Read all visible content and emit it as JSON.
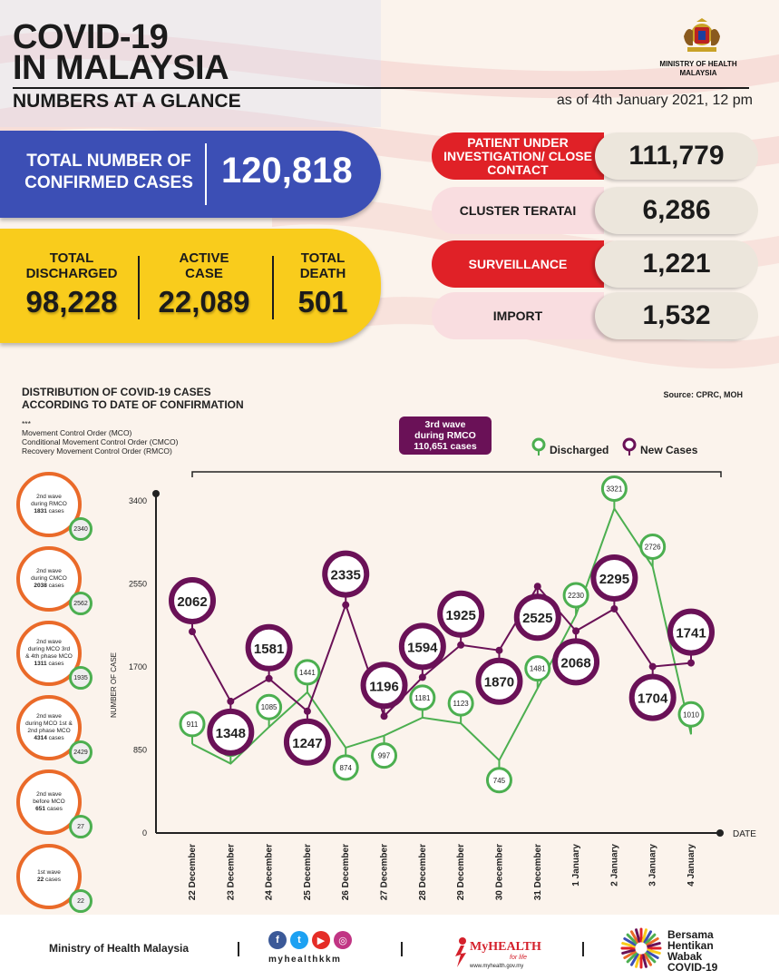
{
  "header": {
    "title_line1": "COVID-19",
    "title_line2": "IN MALAYSIA",
    "subtitle": "NUMBERS AT A GLANCE",
    "as_of": "as of 4th January 2021, 12 pm",
    "ministry_line1": "MINISTRY OF HEALTH",
    "ministry_line2": "MALAYSIA"
  },
  "confirmed": {
    "label_line1": "TOTAL NUMBER OF",
    "label_line2": "CONFIRMED CASES",
    "value": "120,818"
  },
  "summary": {
    "discharged_label_line1": "TOTAL",
    "discharged_label_line2": "DISCHARGED",
    "discharged_value": "98,228",
    "active_label_line1": "ACTIVE",
    "active_label_line2": "CASE",
    "active_value": "22,089",
    "death_label_line1": "TOTAL",
    "death_label_line2": "DEATH",
    "death_value": "501"
  },
  "categories": [
    {
      "label": "PATIENT UNDER INVESTIGATION/ CLOSE CONTACT",
      "value": "111,779",
      "style": "red"
    },
    {
      "label": "CLUSTER TERATAI",
      "value": "6,286",
      "style": "pink"
    },
    {
      "label": "SURVEILLANCE",
      "value": "1,221",
      "style": "red"
    },
    {
      "label": "IMPORT",
      "value": "1,532",
      "style": "pink"
    }
  ],
  "distribution": {
    "title_line1": "DISTRIBUTION OF COVID-19 CASES",
    "title_line2": "ACCORDING TO DATE OF CONFIRMATION",
    "source": "Source: CPRC, MOH",
    "legend_stars": "***",
    "legend_mco": "Movement Control Order (MCO)",
    "legend_cmco": "Conditional Movement Control Order (CMCO)",
    "legend_rmco": "Recovery Movement Control Order (RMCO)",
    "wave3_line1": "3rd wave",
    "wave3_line2": "during RMCO",
    "wave3_line3": "110,651 cases"
  },
  "waves": [
    {
      "line1": "2nd wave",
      "line2": "during RMCO",
      "cases": "1831",
      "suffix": "cases",
      "discharged": "2340"
    },
    {
      "line1": "2nd wave",
      "line2": "during CMCO",
      "cases": "2038",
      "suffix": "cases",
      "discharged": "2562"
    },
    {
      "line1": "2nd wave",
      "line2": "during MCO 3rd & 4th phase MCO",
      "cases": "1311",
      "suffix": "cases",
      "discharged": "1935"
    },
    {
      "line1": "2nd wave",
      "line2": "during MCO 1st & 2nd phase MCO",
      "cases": "4314",
      "suffix": "cases",
      "discharged": "2429"
    },
    {
      "line1": "2nd wave",
      "line2": "before MCO",
      "cases": "651",
      "suffix": "cases",
      "discharged": "27"
    },
    {
      "line1": "1st wave",
      "line2": "",
      "cases": "22",
      "suffix": "cases",
      "discharged": "22"
    }
  ],
  "chart_data": {
    "type": "line",
    "ylabel": "NUMBER OF CASE",
    "xlabel": "DATE",
    "ylim": [
      0,
      3400
    ],
    "yticks": [
      0,
      850,
      1700,
      2550,
      3400
    ],
    "categories": [
      "22 December",
      "23 December",
      "24 December",
      "25 December",
      "26 December",
      "27 December",
      "28 December",
      "29 December",
      "30 December",
      "31 December",
      "1 January",
      "2 January",
      "3 January",
      "4 January"
    ],
    "series": [
      {
        "name": "Discharged",
        "color": "#4caf50",
        "values": [
          911,
          710,
          1085,
          1441,
          874,
          997,
          1181,
          1123,
          745,
          1481,
          2230,
          3321,
          2726,
          1010
        ]
      },
      {
        "name": "New Cases",
        "color": "#6a1157",
        "values": [
          2062,
          1348,
          1581,
          1247,
          2335,
          1196,
          1594,
          1925,
          1870,
          2525,
          2068,
          2295,
          1704,
          1741
        ]
      }
    ]
  },
  "footer": {
    "ministry": "Ministry of Health Malaysia",
    "handle": "myhealthkkm",
    "myhealth": "MyHEALTH",
    "myhealth_tag": "for life",
    "myhealth_url": "www.myhealth.gov.my",
    "bersama_1": "Bersama",
    "bersama_2": "Hentikan",
    "bersama_3": "Wabak",
    "bersama_4": "COVID-19"
  }
}
